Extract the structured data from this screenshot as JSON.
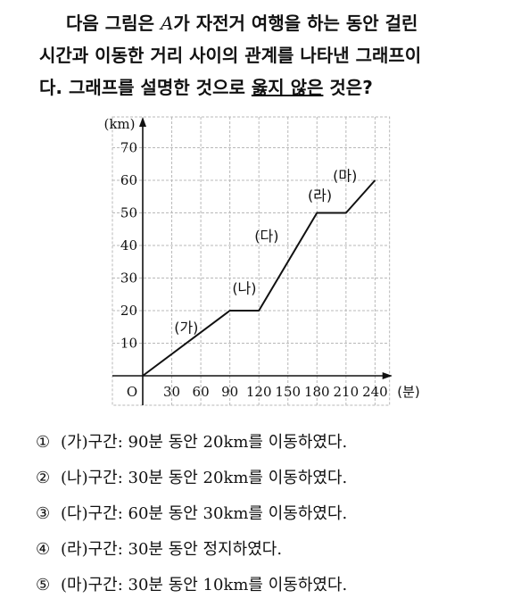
{
  "question": {
    "line1_pre": "다음 그림은 ",
    "variable": "A",
    "line1_post": "가 자전거 여행을 하는 동안 걸린",
    "line2": "시간과 이동한 거리 사이의 관계를 나타낸 그래프이",
    "line3_pre": "다. 그래프를 설명한 것으로 ",
    "line3_emph": "옳지 않은",
    "line3_post": " 것은?"
  },
  "chart_data": {
    "type": "line",
    "ylabel": "(km)",
    "xlabel": "(분)",
    "origin_label": "O",
    "x_ticks": [
      30,
      60,
      90,
      120,
      150,
      180,
      210,
      240
    ],
    "y_ticks": [
      10,
      20,
      30,
      40,
      50,
      60,
      70
    ],
    "xlim": [
      0,
      255
    ],
    "ylim": [
      0,
      75
    ],
    "grid": true,
    "points": [
      {
        "x": 0,
        "y": 0
      },
      {
        "x": 90,
        "y": 20
      },
      {
        "x": 120,
        "y": 20
      },
      {
        "x": 180,
        "y": 50
      },
      {
        "x": 210,
        "y": 50
      },
      {
        "x": 240,
        "y": 60
      }
    ],
    "segment_labels": [
      {
        "label": "(가)",
        "x": 45,
        "y": 15
      },
      {
        "label": "(나)",
        "x": 105,
        "y": 27
      },
      {
        "label": "(다)",
        "x": 128,
        "y": 43
      },
      {
        "label": "(라)",
        "x": 183,
        "y": 55.5
      },
      {
        "label": "(마)",
        "x": 209,
        "y": 61.5
      }
    ]
  },
  "options": [
    {
      "num": "①",
      "text": "(가)구간: 90분 동안 20km를 이동하였다."
    },
    {
      "num": "②",
      "text": "(나)구간: 30분 동안 20km를 이동하였다."
    },
    {
      "num": "③",
      "text": "(다)구간: 60분 동안 30km를 이동하였다."
    },
    {
      "num": "④",
      "text": "(라)구간: 30분 동안 정지하였다."
    },
    {
      "num": "⑤",
      "text": "(마)구간: 30분 동안 10km를 이동하였다."
    }
  ]
}
